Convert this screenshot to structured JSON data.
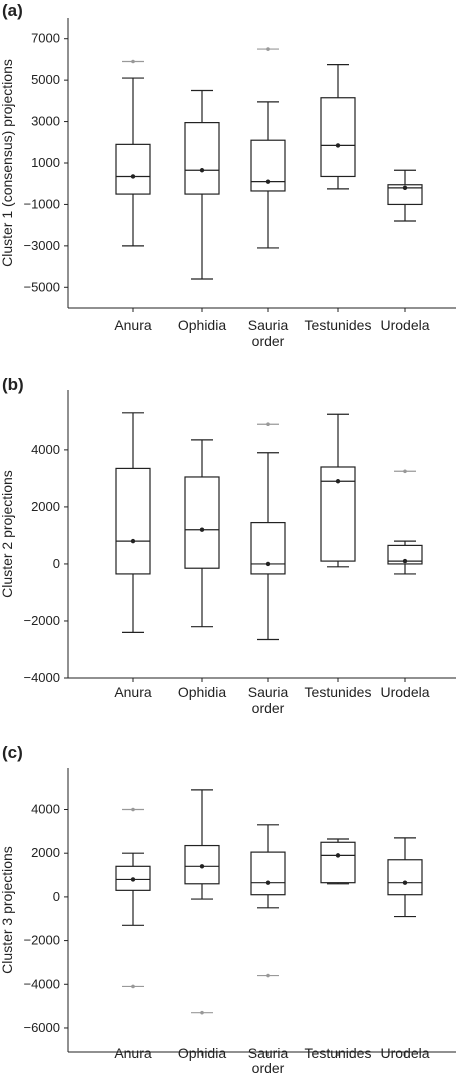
{
  "colors": {
    "box": "#222222",
    "outlier": "#999999",
    "axis": "#222222"
  },
  "chart_data": [
    {
      "type": "box",
      "panel": "(a)",
      "ylabel": "Cluster 1 (consensus) projections",
      "xlabel": "order",
      "categories": [
        "Anura",
        "Ophidia",
        "Sauria",
        "Testunides",
        "Urodela"
      ],
      "ylim": [
        -6000,
        8000
      ],
      "yticks": [
        7000,
        5000,
        3000,
        1000,
        -1000,
        -3000,
        -5000
      ],
      "ytick_labels": [
        "7000",
        "5000",
        "3000",
        "1000",
        "−1000",
        "−3000",
        "−5000"
      ],
      "boxes": [
        {
          "whisker_low": -3000,
          "q1": -500,
          "median": 350,
          "q3": 1900,
          "whisker_high": 5100,
          "mean": 350,
          "outliers": [
            5900
          ]
        },
        {
          "whisker_low": -4600,
          "q1": -500,
          "median": 650,
          "q3": 2950,
          "whisker_high": 4500,
          "mean": 650,
          "outliers": []
        },
        {
          "whisker_low": -3100,
          "q1": -350,
          "median": 100,
          "q3": 2100,
          "whisker_high": 3950,
          "mean": 100,
          "outliers": [
            6500
          ]
        },
        {
          "whisker_low": -250,
          "q1": 350,
          "median": 1850,
          "q3": 4150,
          "whisker_high": 5750,
          "mean": 1850,
          "outliers": []
        },
        {
          "whisker_low": -1800,
          "q1": -1000,
          "median": -200,
          "q3": -50,
          "whisker_high": 650,
          "mean": -200,
          "outliers": []
        }
      ]
    },
    {
      "type": "box",
      "panel": "(b)",
      "ylabel": "Cluster 2  projections",
      "xlabel": "order",
      "categories": [
        "Anura",
        "Ophidia",
        "Sauria",
        "Testunides",
        "Urodela"
      ],
      "ylim": [
        -4000,
        6100
      ],
      "yticks": [
        4000,
        2000,
        0,
        -2000,
        -4000
      ],
      "ytick_labels": [
        "4000",
        "2000",
        "0",
        "−2000",
        "−4000"
      ],
      "boxes": [
        {
          "whisker_low": -2400,
          "q1": -350,
          "median": 800,
          "q3": 3350,
          "whisker_high": 5300,
          "mean": 800,
          "outliers": []
        },
        {
          "whisker_low": -2200,
          "q1": -150,
          "median": 1200,
          "q3": 3050,
          "whisker_high": 4350,
          "mean": 1200,
          "outliers": []
        },
        {
          "whisker_low": -2650,
          "q1": -350,
          "median": 0,
          "q3": 1450,
          "whisker_high": 3900,
          "mean": 0,
          "outliers": [
            4900
          ]
        },
        {
          "whisker_low": -100,
          "q1": 100,
          "median": 2900,
          "q3": 3400,
          "whisker_high": 5250,
          "mean": 2900,
          "outliers": []
        },
        {
          "whisker_low": -350,
          "q1": 0,
          "median": 100,
          "q3": 650,
          "whisker_high": 800,
          "mean": 100,
          "outliers": [
            3250
          ]
        }
      ]
    },
    {
      "type": "box",
      "panel": "(c)",
      "ylabel": "Cluster 3 projections",
      "xlabel": "order",
      "categories": [
        "Anura",
        "Ophidia",
        "Sauria",
        "Testunides",
        "Urodela"
      ],
      "ylim": [
        -7100,
        5900
      ],
      "yticks": [
        4000,
        2000,
        0,
        -2000,
        -4000,
        -6000
      ],
      "ytick_labels": [
        "4000",
        "2000",
        "0",
        "−2000",
        "−4000",
        "−6000"
      ],
      "boxes": [
        {
          "whisker_low": -1300,
          "q1": 300,
          "median": 800,
          "q3": 1400,
          "whisker_high": 2000,
          "mean": 800,
          "outliers": [
            4000,
            -4100
          ]
        },
        {
          "whisker_low": -100,
          "q1": 600,
          "median": 1400,
          "q3": 2350,
          "whisker_high": 4900,
          "mean": 1400,
          "outliers": [
            -5300
          ]
        },
        {
          "whisker_low": -500,
          "q1": 100,
          "median": 650,
          "q3": 2050,
          "whisker_high": 3300,
          "mean": 650,
          "outliers": [
            -3600
          ]
        },
        {
          "whisker_low": 600,
          "q1": 650,
          "median": 1900,
          "q3": 2500,
          "whisker_high": 2650,
          "mean": 1900,
          "outliers": []
        },
        {
          "whisker_low": -900,
          "q1": 100,
          "median": 650,
          "q3": 1700,
          "whisker_high": 2700,
          "mean": 650,
          "outliers": []
        }
      ]
    }
  ]
}
